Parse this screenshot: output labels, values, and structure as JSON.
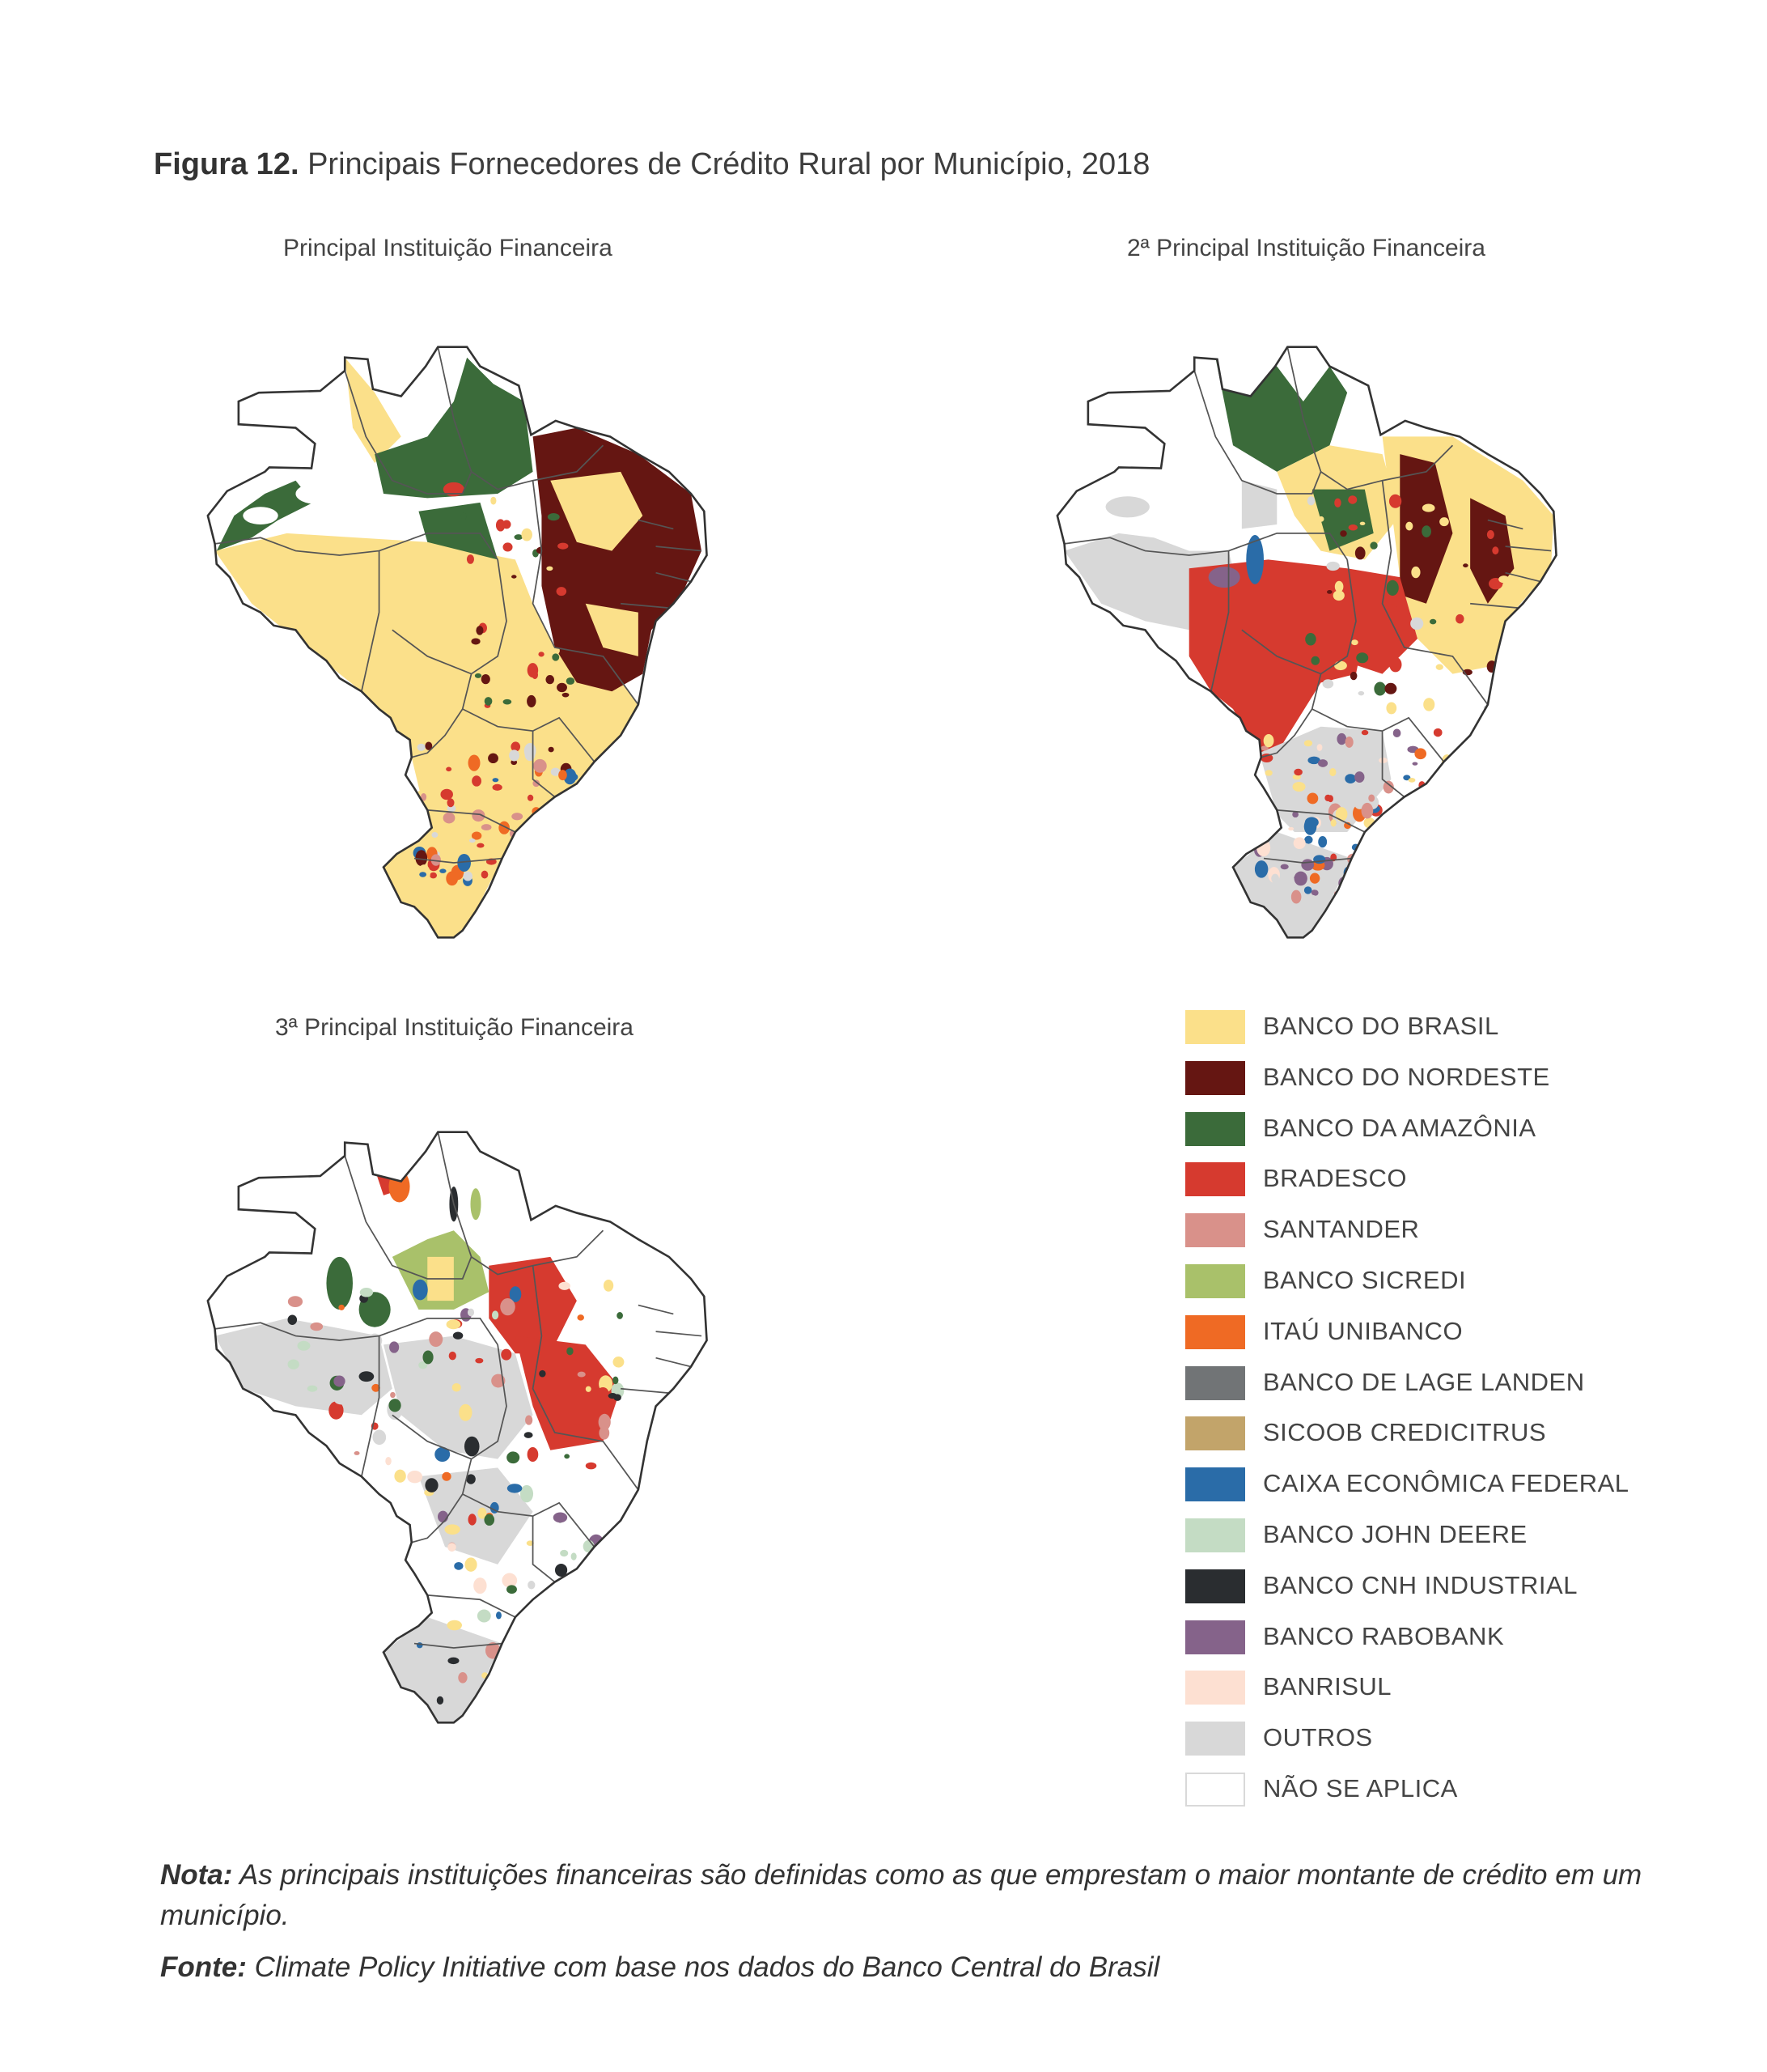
{
  "figure": {
    "label": "Figura 12.",
    "title": "Principais Fornecedores de Crédito Rural por Município, 2018"
  },
  "maps": [
    {
      "title": "Principal Instituição Financeira"
    },
    {
      "title": "2ª Principal Instituição Financeira"
    },
    {
      "title": "3ª Principal Instituição Financeira"
    }
  ],
  "legend": {
    "items": [
      {
        "label": "BANCO DO BRASIL",
        "color": "#fbe08a"
      },
      {
        "label": "BANCO DO NORDESTE",
        "color": "#651612"
      },
      {
        "label": "BANCO DA AMAZÔNIA",
        "color": "#3b6b3a"
      },
      {
        "label": "BRADESCO",
        "color": "#d63a2f"
      },
      {
        "label": "SANTANDER",
        "color": "#d9918a"
      },
      {
        "label": "BANCO SICREDI",
        "color": "#a9c16a"
      },
      {
        "label": "ITAÚ UNIBANCO",
        "color": "#ef6a24"
      },
      {
        "label": "BANCO DE LAGE LANDEN",
        "color": "#717476"
      },
      {
        "label": "SICOOB CREDICITRUS",
        "color": "#c2a46a"
      },
      {
        "label": "CAIXA ECONÔMICA FEDERAL",
        "color": "#2a6ca8"
      },
      {
        "label": "BANCO JOHN DEERE",
        "color": "#c4dcc4"
      },
      {
        "label": "BANCO CNH INDUSTRIAL",
        "color": "#2a2d30"
      },
      {
        "label": "BANCO RABOBANK",
        "color": "#85638a"
      },
      {
        "label": "BANRISUL",
        "color": "#fde0d2"
      },
      {
        "label": "OUTROS",
        "color": "#d8d8d8"
      },
      {
        "label": "NÃO SE APLICA",
        "color": "#ffffff"
      }
    ]
  },
  "notes": {
    "note_label": "Nota:",
    "note_text": "As principais instituições financeiras são definidas como as que emprestam o maior montante de crédito em um município.",
    "source_label": "Fonte:",
    "source_text": "Climate Policy Initiative com base nos dados do Banco Central do Brasil"
  }
}
